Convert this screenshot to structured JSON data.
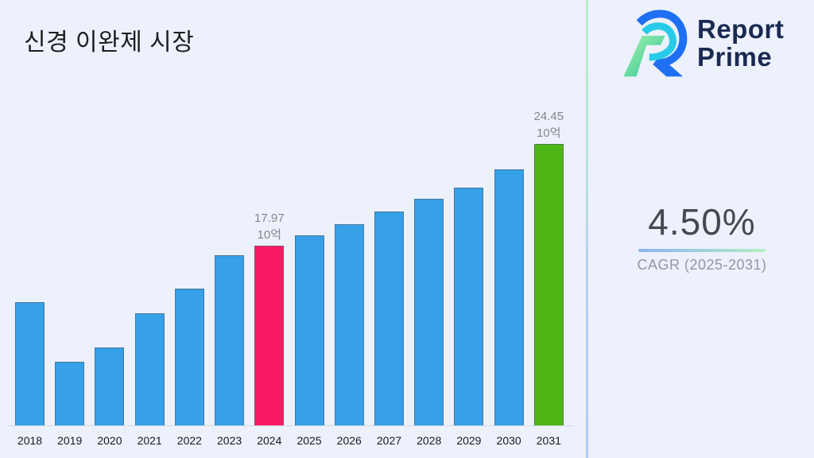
{
  "page": {
    "background": "#ecf1fb",
    "divider_gradient": [
      "#b6f0c6",
      "#b7e3da",
      "#b3cdf2",
      "#aecdf4"
    ],
    "title_color": "#1d1d1f"
  },
  "header": {
    "title": "신경 이완제 시장"
  },
  "brand": {
    "line1": "Report",
    "line2": "Prime",
    "text_color": "#1b2a52",
    "mark_colors": {
      "outer": "#1f6ff2",
      "inner": "#27cbe9",
      "stripe_start": "#a4f2a8",
      "stripe_end": "#2fc49e"
    }
  },
  "stat": {
    "value": "4.50%",
    "label": "CAGR (2025-2031)",
    "underline_colors": [
      "#8fb2f4",
      "#b3eec2"
    ]
  },
  "chart_data": {
    "type": "bar",
    "title": "신경 이완제 시장",
    "categories": [
      "2018",
      "2019",
      "2020",
      "2021",
      "2022",
      "2023",
      "2024",
      "2025",
      "2026",
      "2027",
      "2028",
      "2029",
      "2030",
      "2031"
    ],
    "values": [
      14.5,
      10.8,
      11.7,
      13.8,
      15.3,
      17.4,
      17.97,
      18.6,
      19.3,
      20.1,
      20.9,
      21.6,
      22.7,
      24.45
    ],
    "unit": "10억",
    "value_labels": {
      "2024": [
        "17.97",
        "10억"
      ],
      "2031": [
        "24.45",
        "10억"
      ]
    },
    "bar_colors": {
      "default": "#36a0e8",
      "2024": "#fa1a63",
      "2031": "#4db614"
    },
    "ylim": [
      6.8,
      26.5
    ],
    "xlabel": "",
    "ylabel": "",
    "grid": false,
    "legend_position": "none",
    "axis_label_color": "#17191d",
    "value_label_color": "#82878e"
  }
}
